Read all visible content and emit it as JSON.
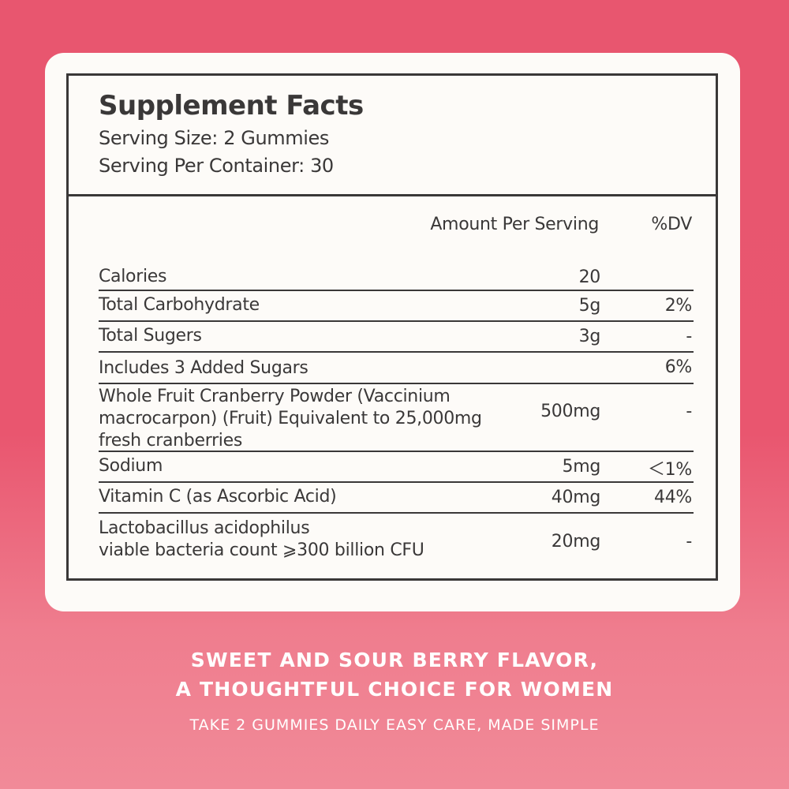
{
  "facts": {
    "title": "Supplement Facts",
    "serving_size": "Serving Size: 2 Gummies",
    "servings_per_container": "Serving Per Container: 30",
    "amount_header": "Amount Per Serving",
    "dv_header": "%DV",
    "rows": [
      {
        "name": "Calories",
        "amount": "20",
        "dv": ""
      },
      {
        "name": "Total Carbohydrate",
        "amount": "5g",
        "dv": "2%"
      },
      {
        "name": "Total Sugers",
        "amount": "3g",
        "dv": "-"
      },
      {
        "name": "Includes 3 Added Sugars",
        "amount": "",
        "dv": "6%"
      },
      {
        "name_lines": [
          "Whole Fruit Cranberry Powder (Vaccinium",
          "macrocarpon) (Fruit) Equivalent to 25,000mg",
          "fresh cranberries"
        ],
        "amount": "500mg",
        "dv": "-"
      },
      {
        "name": "Sodium",
        "amount": "5mg",
        "dv": "＜1%"
      },
      {
        "name": "Vitamin C (as Ascorbic Acid)",
        "amount": "40mg",
        "dv": "44%"
      },
      {
        "name_lines": [
          "Lactobacillus acidophilus",
          "viable bacteria count ⩾300 billion CFU"
        ],
        "amount": "20mg",
        "dv": "-"
      }
    ]
  },
  "tagline": {
    "line1": "SWEET AND SOUR BERRY FLAVOR,",
    "line2": "A THOUGHTFUL CHOICE FOR WOMEN",
    "sub": "TAKE 2 GUMMIES DAILY EASY CARE, MADE SIMPLE"
  },
  "colors": {
    "background": "#e9566f",
    "card": "#fdfbf8",
    "text_dark": "#3a3838",
    "text_light": "#ffffff"
  }
}
